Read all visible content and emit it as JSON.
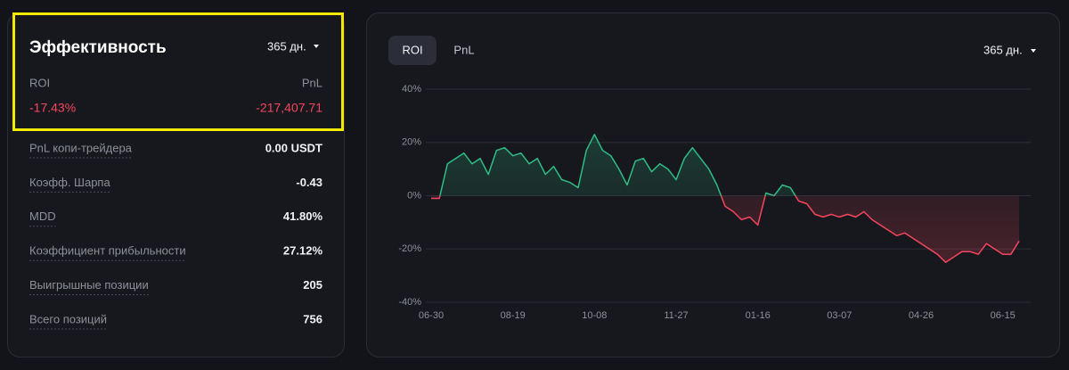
{
  "performance": {
    "title": "Эффективность",
    "period": "365 дн.",
    "roi_label": "ROI",
    "pnl_label": "PnL",
    "roi_value": "-17.43%",
    "pnl_value": "-217,407.71",
    "metrics": [
      {
        "label": "PnL копи-трейдера",
        "value": "0.00 USDT"
      },
      {
        "label": "Коэфф. Шарпа",
        "value": "-0.43"
      },
      {
        "label": "MDD",
        "value": "41.80%"
      },
      {
        "label": "Коэффициент прибыльности",
        "value": "27.12%"
      },
      {
        "label": "Выигрышные позиции",
        "value": "205"
      },
      {
        "label": "Всего позиций",
        "value": "756"
      }
    ]
  },
  "chart_panel": {
    "tabs": [
      "ROI",
      "PnL"
    ],
    "period": "365 дн."
  },
  "chart": {
    "type": "line",
    "x": [
      "06-30",
      "07-05",
      "07-10",
      "07-15",
      "07-20",
      "07-25",
      "07-30",
      "08-04",
      "08-09",
      "08-14",
      "08-19",
      "08-24",
      "08-29",
      "09-03",
      "09-08",
      "09-13",
      "09-18",
      "09-23",
      "09-28",
      "10-03",
      "10-08",
      "10-13",
      "10-18",
      "10-23",
      "10-28",
      "11-02",
      "11-07",
      "11-12",
      "11-17",
      "11-22",
      "11-27",
      "12-02",
      "12-07",
      "12-12",
      "12-17",
      "12-22",
      "12-27",
      "01-01",
      "01-06",
      "01-11",
      "01-16",
      "01-21",
      "01-26",
      "01-31",
      "02-05",
      "02-10",
      "02-15",
      "02-20",
      "02-25",
      "03-02",
      "03-07",
      "03-12",
      "03-17",
      "03-22",
      "03-27",
      "04-01",
      "04-06",
      "04-11",
      "04-16",
      "04-21",
      "04-26",
      "05-01",
      "05-06",
      "05-11",
      "05-16",
      "05-21",
      "05-26",
      "05-31",
      "06-05",
      "06-10",
      "06-15",
      "06-20",
      "06-25"
    ],
    "values": [
      -1,
      -1,
      12,
      14,
      16,
      12,
      14,
      8,
      17,
      18,
      15,
      16,
      12,
      14,
      8,
      11,
      6,
      5,
      3,
      17,
      23,
      17,
      15,
      10,
      4,
      13,
      14,
      9,
      12,
      10,
      6,
      14,
      18,
      14,
      10,
      4,
      -4,
      -6,
      -9,
      -8,
      -11,
      1,
      0,
      4,
      3,
      -2,
      -3,
      -7,
      -8,
      -7,
      -8,
      -7,
      -8,
      -6,
      -9,
      -11,
      -13,
      -15,
      -14,
      -16,
      -18,
      -20,
      -22,
      -25,
      -23,
      -21,
      -21,
      -22,
      -18,
      -20,
      -22,
      -22,
      -17
    ],
    "xticks": [
      "06-30",
      "08-19",
      "10-08",
      "11-27",
      "01-16",
      "03-07",
      "04-26",
      "06-15"
    ],
    "ylim": [
      -40,
      40
    ],
    "yticks": [
      {
        "value": 40,
        "label": "40%"
      },
      {
        "value": 20,
        "label": "20%"
      },
      {
        "value": 0,
        "label": "0%"
      },
      {
        "value": -20,
        "label": "-20%"
      },
      {
        "value": -40,
        "label": "-40%"
      }
    ],
    "grid": true,
    "positive_color": "#2ebd85",
    "negative_color": "#f6465d"
  }
}
